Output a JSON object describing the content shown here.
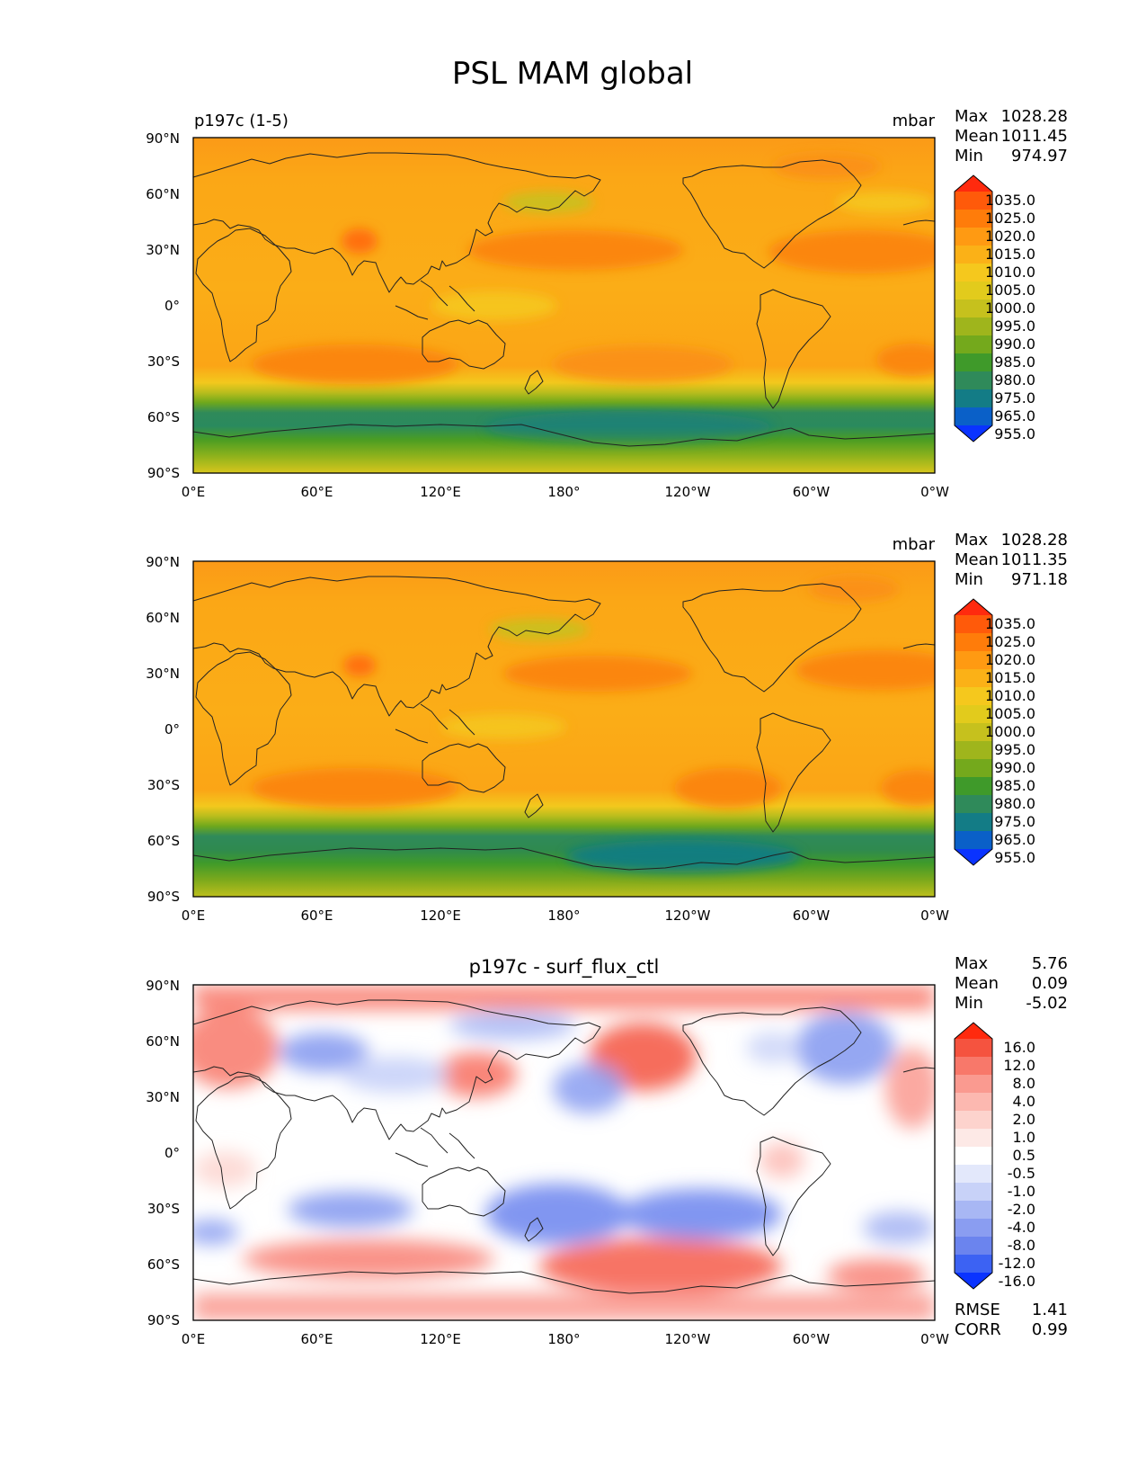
{
  "figure": {
    "title": "PSL MAM global"
  },
  "axes": {
    "lat_labels": [
      "90°N",
      "60°N",
      "30°N",
      "0°",
      "30°S",
      "60°S",
      "90°S"
    ],
    "lon_labels": [
      "0°E",
      "60°E",
      "120°E",
      "180°",
      "120°W",
      "60°W",
      "0°W"
    ]
  },
  "panels": [
    {
      "left_title": "p197c (1-5)",
      "center_title": "",
      "units": "mbar",
      "stats": [
        {
          "label": "Max",
          "value": "1028.28"
        },
        {
          "label": "Mean",
          "value": "1011.45"
        },
        {
          "label": "Min",
          "value": "974.97"
        }
      ],
      "colorbar": {
        "labels": [
          "1035.0",
          "1025.0",
          "1020.0",
          "1015.0",
          "1010.0",
          "1005.0",
          "1000.0",
          "995.0",
          "990.0",
          "985.0",
          "980.0",
          "975.0",
          "965.0",
          "955.0"
        ],
        "colors": [
          "#ff2a0e",
          "#ff5a0a",
          "#ff7c0a",
          "#ff9a12",
          "#fbb117",
          "#f5c81d",
          "#e2cb1c",
          "#c6c11d",
          "#9fb51c",
          "#74a91c",
          "#3f9a2a",
          "#2f8a5a",
          "#137c86",
          "#0a60c8",
          "#0a33ff"
        ]
      }
    },
    {
      "left_title": "",
      "center_title": "",
      "units": "mbar",
      "stats": [
        {
          "label": "Max",
          "value": "1028.28"
        },
        {
          "label": "Mean",
          "value": "1011.35"
        },
        {
          "label": "Min",
          "value": "971.18"
        }
      ],
      "colorbar": {
        "labels": [
          "1035.0",
          "1025.0",
          "1020.0",
          "1015.0",
          "1010.0",
          "1005.0",
          "1000.0",
          "995.0",
          "990.0",
          "985.0",
          "980.0",
          "975.0",
          "965.0",
          "955.0"
        ],
        "colors": [
          "#ff2a0e",
          "#ff5a0a",
          "#ff7c0a",
          "#ff9a12",
          "#fbb117",
          "#f5c81d",
          "#e2cb1c",
          "#c6c11d",
          "#9fb51c",
          "#74a91c",
          "#3f9a2a",
          "#2f8a5a",
          "#137c86",
          "#0a60c8",
          "#0a33ff"
        ]
      }
    },
    {
      "left_title": "",
      "center_title": "p197c - surf_flux_ctl",
      "units": "",
      "stats": [
        {
          "label": "Max",
          "value": "5.76"
        },
        {
          "label": "Mean",
          "value": "0.09"
        },
        {
          "label": "Min",
          "value": "-5.02"
        }
      ],
      "extra_stats": [
        {
          "label": "RMSE",
          "value": "1.41"
        },
        {
          "label": "CORR",
          "value": "0.99"
        }
      ],
      "colorbar": {
        "labels": [
          "16.0",
          "12.0",
          "8.0",
          "4.0",
          "2.0",
          "1.0",
          "0.5",
          "-0.5",
          "-1.0",
          "-2.0",
          "-4.0",
          "-8.0",
          "-12.0",
          "-16.0"
        ],
        "colors": [
          "#ff2a0e",
          "#f5533f",
          "#f8786a",
          "#fa9a90",
          "#fcb8b0",
          "#fdd3cd",
          "#fde9e6",
          "#ffffff",
          "#e3e8fb",
          "#c8d2f8",
          "#a8b7f4",
          "#8a9df1",
          "#6b84ee",
          "#3c62f3",
          "#0a33ff"
        ]
      }
    }
  ]
}
